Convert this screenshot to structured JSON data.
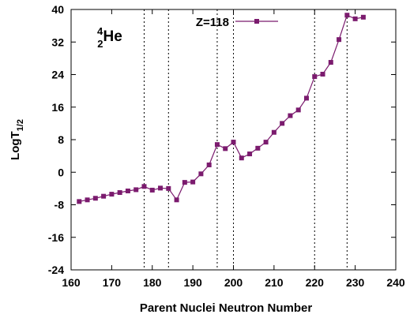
{
  "chart_data": {
    "type": "line",
    "xlabel": "Parent Nuclei Neutron Number",
    "ylabel_main": "LogT",
    "ylabel_sub": "1/2",
    "xlim": [
      160,
      240
    ],
    "ylim": [
      -24,
      40
    ],
    "xticks": [
      160,
      170,
      180,
      190,
      200,
      210,
      220,
      230,
      240
    ],
    "yticks": [
      -24,
      -16,
      -8,
      0,
      8,
      16,
      24,
      32,
      40
    ],
    "grid": false,
    "legend_position": "top-right",
    "annotation": {
      "mass": "4",
      "charge": "2",
      "symbol": "He"
    },
    "vlines": [
      178,
      184,
      196,
      200,
      220,
      228
    ],
    "series": [
      {
        "name": "Z=118",
        "color": "#7b1b6e",
        "marker": "square",
        "x": [
          162,
          164,
          166,
          168,
          170,
          172,
          174,
          176,
          178,
          180,
          182,
          184,
          186,
          188,
          190,
          192,
          194,
          196,
          198,
          200,
          202,
          204,
          206,
          208,
          210,
          212,
          214,
          216,
          218,
          220,
          222,
          224,
          226,
          228,
          230,
          232
        ],
        "y": [
          -7.2,
          -6.8,
          -6.4,
          -5.9,
          -5.4,
          -5.0,
          -4.6,
          -4.3,
          -3.5,
          -4.4,
          -3.9,
          -4.0,
          -6.8,
          -2.5,
          -2.4,
          -0.4,
          1.8,
          6.8,
          5.8,
          7.4,
          3.5,
          4.5,
          5.9,
          7.4,
          9.8,
          12.0,
          13.9,
          15.3,
          18.2,
          23.5,
          24.1,
          27.0,
          32.6,
          38.6,
          37.7,
          38.1
        ]
      }
    ]
  }
}
